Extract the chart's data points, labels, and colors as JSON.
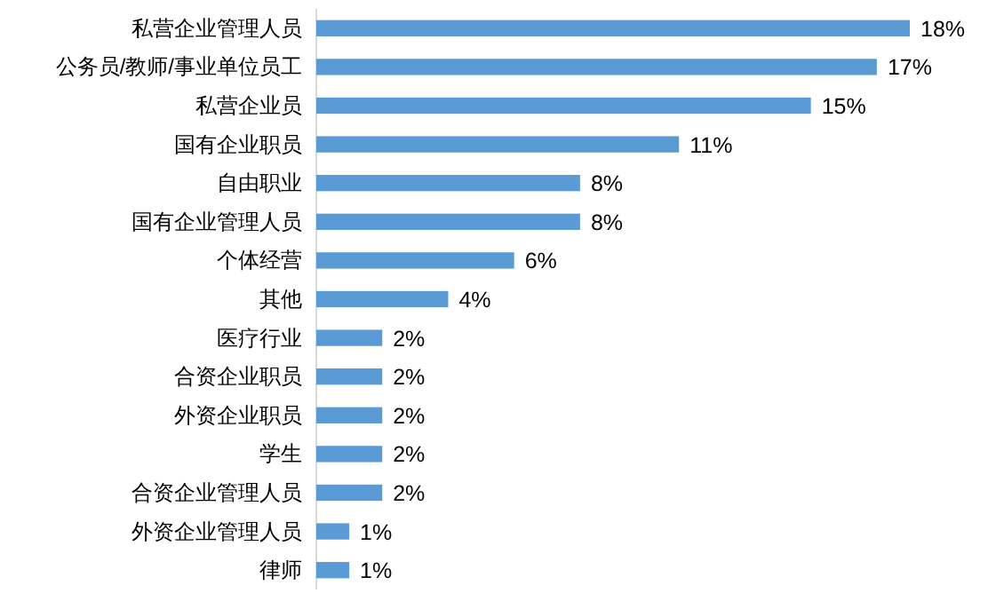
{
  "chart_data": {
    "type": "bar",
    "orientation": "horizontal",
    "color": "#5b9bd5",
    "categories": [
      "私营企业管理人员",
      "公务员/教师/事业单位员工",
      "私营企业员",
      "国有企业职员",
      "自由职业",
      "国有企业管理人员",
      "个体经营",
      "其他",
      "医疗行业",
      "合资企业职员",
      "外资企业职员",
      "学生",
      "合资企业管理人员",
      "外资企业管理人员",
      "律师"
    ],
    "values": [
      18,
      17,
      15,
      11,
      8,
      8,
      6,
      4,
      2,
      2,
      2,
      2,
      2,
      1,
      1
    ],
    "value_labels": [
      "18%",
      "17%",
      "15%",
      "11%",
      "8%",
      "8%",
      "6%",
      "4%",
      "2%",
      "2%",
      "2%",
      "2%",
      "2%",
      "1%",
      "1%"
    ]
  }
}
